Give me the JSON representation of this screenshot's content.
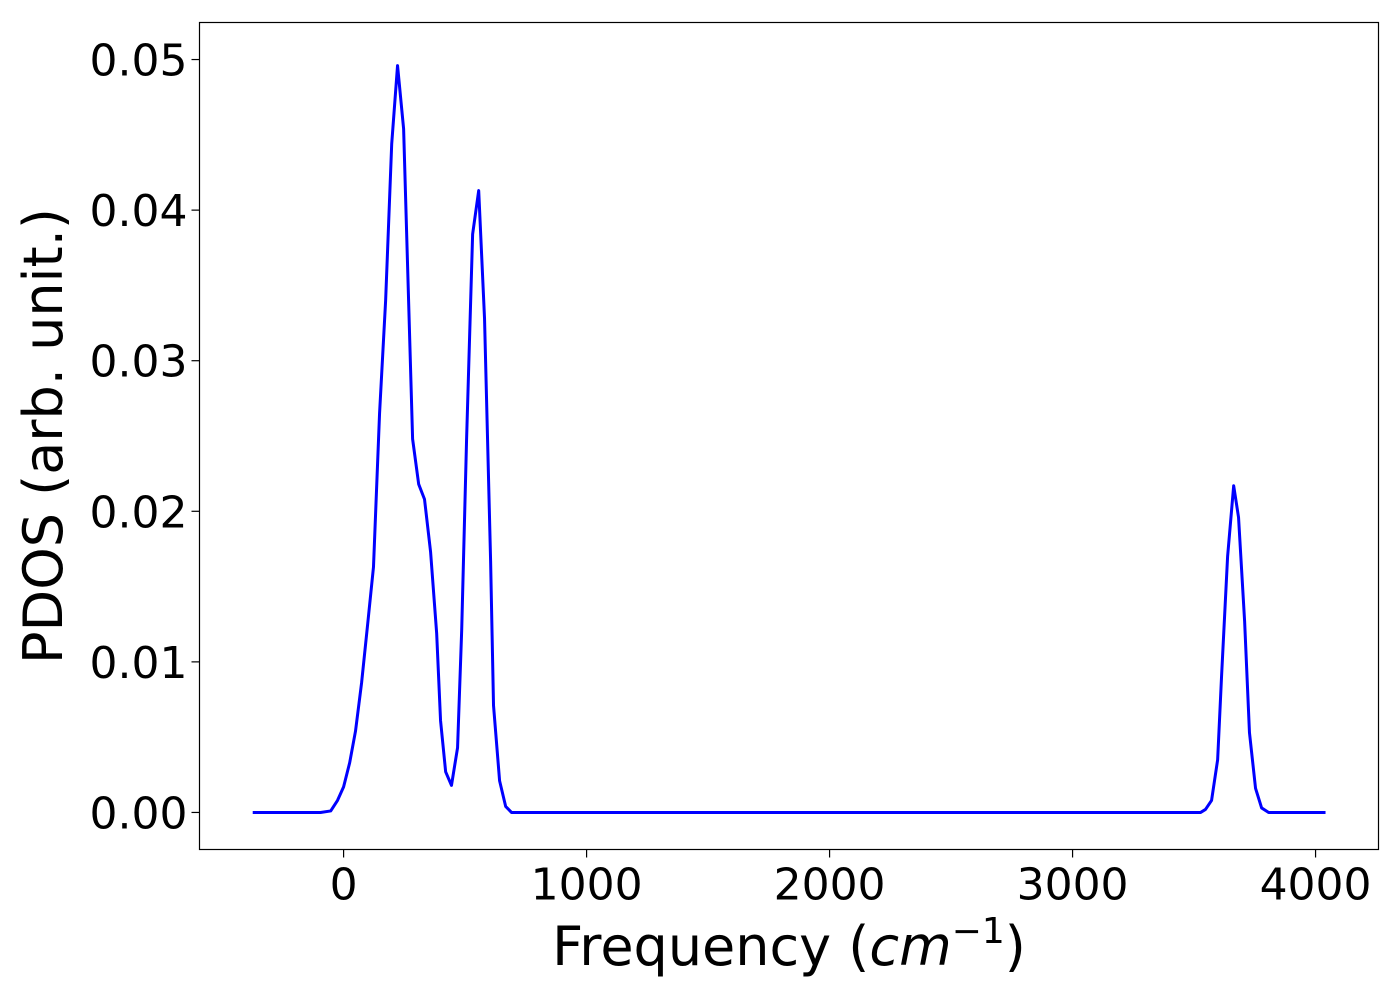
{
  "chart_data": {
    "type": "line",
    "x_label": [
      "Frequency (",
      "cm",
      "−1",
      ")"
    ],
    "y_label": "PDOS (arb. unit.)",
    "x": [
      -374,
      -95,
      -53,
      -25,
      0,
      25,
      49,
      74,
      99,
      123,
      148,
      173,
      198,
      222,
      247,
      284,
      309,
      333,
      358,
      383,
      399,
      420,
      444,
      469,
      486,
      506,
      531,
      556,
      580,
      605,
      617,
      642,
      667,
      691,
      3527,
      3547,
      3572,
      3597,
      3613,
      3638,
      3663,
      3683,
      3708,
      3728,
      3753,
      3778,
      3807,
      4041
    ],
    "series": [
      {
        "name": "PDOS",
        "color": "#0000ff",
        "values": [
          0,
          0,
          0.0001,
          0.0008,
          0.0017,
          0.0033,
          0.0054,
          0.0086,
          0.0125,
          0.0163,
          0.0265,
          0.034,
          0.0444,
          0.0496,
          0.0454,
          0.0248,
          0.0218,
          0.0208,
          0.0173,
          0.0119,
          0.0061,
          0.0027,
          0.0018,
          0.0043,
          0.0121,
          0.0247,
          0.0384,
          0.0413,
          0.0328,
          0.0167,
          0.0071,
          0.0021,
          0.0004,
          0,
          0,
          0.0002,
          0.0008,
          0.0035,
          0.009,
          0.017,
          0.0217,
          0.0196,
          0.0127,
          0.0053,
          0.0016,
          0.0003,
          0,
          0
        ]
      }
    ],
    "xlim": [
      -593,
      4259
    ],
    "ylim": [
      -0.00246,
      0.05246
    ],
    "xticks": [
      0,
      1000,
      2000,
      3000,
      4000
    ],
    "yticks": [
      {
        "value": 0,
        "label": "0.00"
      },
      0.01,
      0.02,
      0.03,
      0.04,
      0.05
    ]
  }
}
